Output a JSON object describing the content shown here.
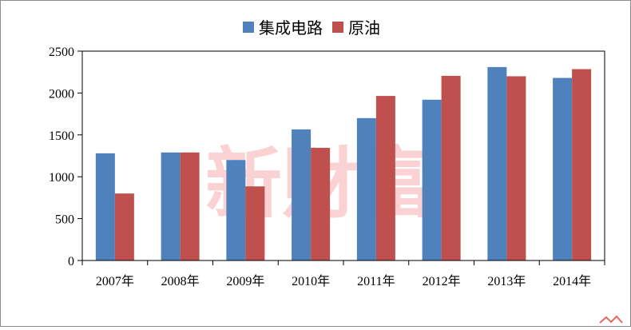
{
  "chart_data": {
    "type": "bar",
    "categories": [
      "2007年",
      "2008年",
      "2009年",
      "2010年",
      "2011年",
      "2012年",
      "2013年",
      "2014年"
    ],
    "series": [
      {
        "name": "集成电路",
        "color": "#4f81bd",
        "values": [
          1280,
          1290,
          1200,
          1565,
          1700,
          1920,
          2310,
          2180
        ]
      },
      {
        "name": "原油",
        "color": "#c0504d",
        "values": [
          800,
          1290,
          885,
          1345,
          1965,
          2205,
          2200,
          2285
        ]
      }
    ],
    "ylim": [
      0,
      2500
    ],
    "yticks": [
      0,
      500,
      1000,
      1500,
      2000,
      2500
    ],
    "grid": false,
    "legend": "top-center",
    "watermark": "新財富"
  }
}
